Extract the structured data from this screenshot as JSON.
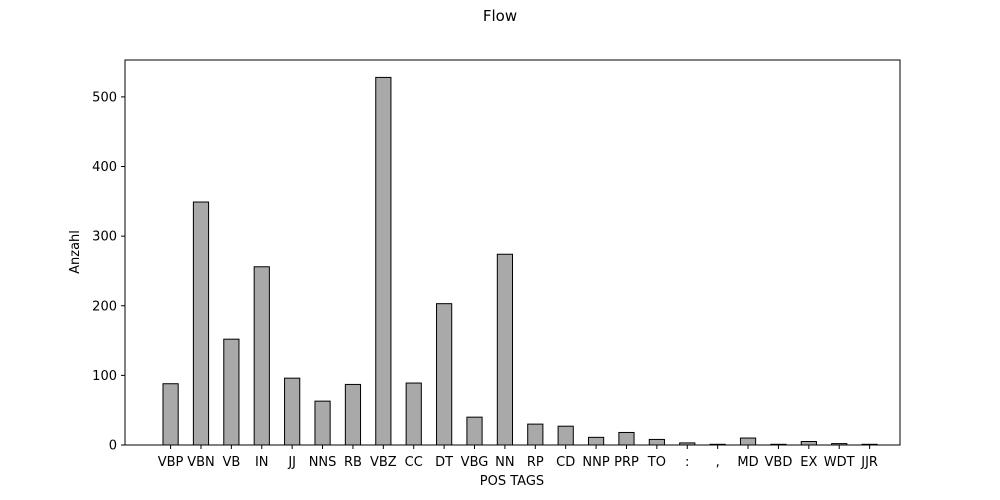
{
  "chart_data": {
    "type": "bar",
    "title": "Flow",
    "xlabel": "POS TAGS",
    "ylabel": "Anzahl",
    "categories": [
      "VBP",
      "VBN",
      "VB",
      "IN",
      "JJ",
      "NNS",
      "RB",
      "VBZ",
      "CC",
      "DT",
      "VBG",
      "NN",
      "RP",
      "CD",
      "NNP",
      "PRP",
      "TO",
      ":",
      ",",
      "MD",
      "VBD",
      "EX",
      "WDT",
      "JJR"
    ],
    "values": [
      88,
      349,
      152,
      256,
      96,
      63,
      87,
      528,
      89,
      203,
      40,
      274,
      30,
      27,
      11,
      18,
      8,
      3,
      1,
      10,
      1,
      5,
      2,
      1
    ],
    "ylim": [
      0,
      553
    ],
    "yticks": [
      0,
      100,
      200,
      300,
      400,
      500
    ],
    "grid": false,
    "bar_color": "#a9a9a9",
    "edge_color": "#000000"
  }
}
